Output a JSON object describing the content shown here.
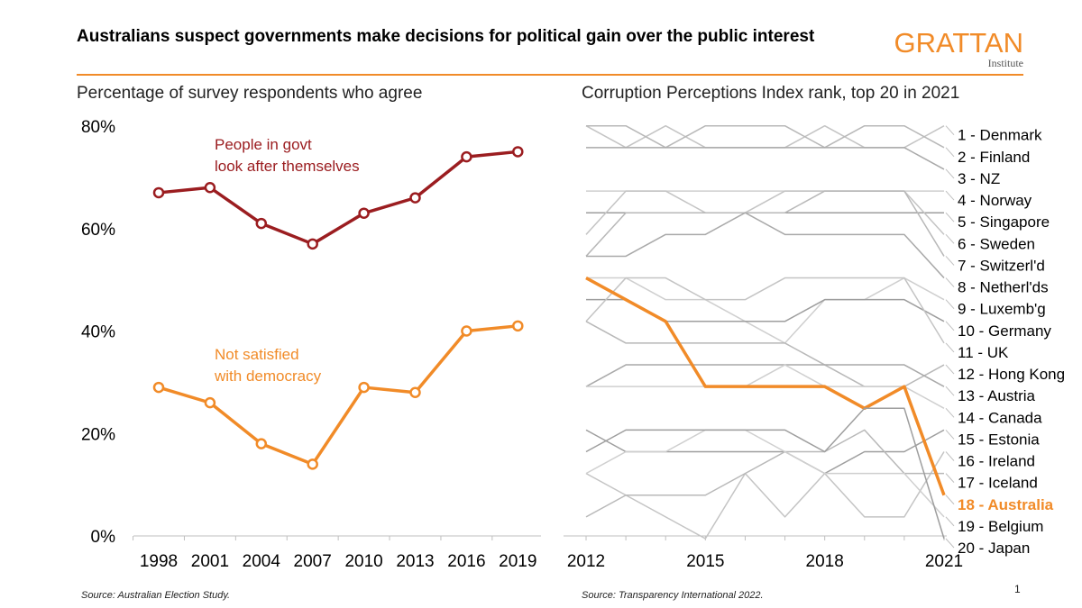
{
  "header": {
    "title": "Australians suspect governments make decisions for political gain over the public interest",
    "logo_word": "GRATTAN",
    "logo_sub": "Institute"
  },
  "colors": {
    "dark_red": "#9b1d20",
    "orange": "#f18b28",
    "grey": "#b3b3b3",
    "dark_grey": "#8c8c8c"
  },
  "page_number": "1",
  "chart_data": [
    {
      "type": "line",
      "title": "Percentage of survey respondents who agree",
      "source": "Source: Australian Election Study.",
      "categories": [
        "1998",
        "2001",
        "2004",
        "2007",
        "2010",
        "2013",
        "2016",
        "2019"
      ],
      "ylim": [
        0,
        80
      ],
      "yticks": [
        "0%",
        "20%",
        "40%",
        "60%",
        "80%"
      ],
      "grid": false,
      "series": [
        {
          "name": "People in govt look after themselves",
          "label_lines": [
            "People in govt",
            "look after themselves"
          ],
          "color": "#9b1d20",
          "values": [
            67,
            68,
            61,
            57,
            63,
            66,
            74,
            75
          ]
        },
        {
          "name": "Not satisfied with democracy",
          "label_lines": [
            "Not satisfied",
            "with democracy"
          ],
          "color": "#f18b28",
          "values": [
            29,
            26,
            18,
            14,
            29,
            28,
            40,
            41
          ]
        }
      ]
    },
    {
      "type": "line",
      "title": "Corruption Perceptions Index rank, top 20 in 2021",
      "source": "Source: Transparency International 2022.",
      "x": [
        2012,
        2013,
        2014,
        2015,
        2016,
        2017,
        2018,
        2019,
        2020,
        2021
      ],
      "xticks": [
        "2012",
        "2015",
        "2018",
        "2021"
      ],
      "y_reversed": true,
      "rank_range": [
        1,
        21
      ],
      "highlight": "18 - Australia",
      "series": [
        {
          "name": "1 - Denmark",
          "values": [
            1,
            2,
            1,
            2,
            2,
            2,
            1,
            2,
            2,
            1
          ]
        },
        {
          "name": "2 - Finland",
          "values": [
            1,
            1,
            2,
            1,
            1,
            1,
            2,
            1,
            1,
            2
          ]
        },
        {
          "name": "3 - NZ",
          "values": [
            2,
            2,
            2,
            2,
            2,
            2,
            2,
            2,
            2,
            3
          ]
        },
        {
          "name": "4 - Norway",
          "values": [
            4,
            4,
            4,
            4,
            4,
            4,
            4,
            4,
            4,
            4
          ]
        },
        {
          "name": "5 - Singapore",
          "values": [
            5,
            5,
            5,
            5,
            5,
            5,
            5,
            5,
            5,
            5
          ]
        },
        {
          "name": "6 - Sweden",
          "values": [
            6,
            4,
            4,
            5,
            5,
            4,
            4,
            4,
            4,
            6
          ]
        },
        {
          "name": "7 - Switzerl'd",
          "values": [
            7,
            5,
            5,
            5,
            5,
            5,
            4,
            4,
            4,
            7
          ]
        },
        {
          "name": "8 - Netherl'ds",
          "values": [
            7,
            7,
            6,
            6,
            5,
            6,
            6,
            6,
            6,
            8
          ]
        },
        {
          "name": "9 - Luxemb'g",
          "values": [
            8,
            8,
            9,
            9,
            10,
            11,
            9,
            9,
            8,
            9
          ]
        },
        {
          "name": "10 - Germany",
          "values": [
            9,
            9,
            10,
            10,
            10,
            10,
            9,
            9,
            9,
            10
          ]
        },
        {
          "name": "11 - UK",
          "values": [
            10,
            8,
            8,
            9,
            9,
            8,
            8,
            8,
            8,
            11
          ]
        },
        {
          "name": "12 - Hong Kong",
          "values": [
            10,
            11,
            11,
            11,
            11,
            11,
            12,
            13,
            13,
            12
          ]
        },
        {
          "name": "13 - Austria",
          "values": [
            13,
            12,
            12,
            12,
            12,
            12,
            12,
            12,
            12,
            13
          ]
        },
        {
          "name": "14 - Canada",
          "values": [
            13,
            13,
            13,
            13,
            13,
            12,
            13,
            13,
            13,
            14
          ]
        },
        {
          "name": "15 - Estonia",
          "values": [
            15,
            16,
            16,
            16,
            16,
            16,
            17,
            16,
            16,
            15
          ]
        },
        {
          "name": "16 - Ireland",
          "values": [
            17,
            18,
            19,
            20,
            17,
            19,
            17,
            19,
            19,
            16
          ]
        },
        {
          "name": "17 - Iceland",
          "values": [
            19,
            18,
            18,
            18,
            17,
            16,
            16,
            15,
            17,
            17
          ]
        },
        {
          "name": "18 - Australia",
          "values": [
            8,
            9,
            10,
            13,
            13,
            13,
            13,
            14,
            13,
            18
          ]
        },
        {
          "name": "19 - Belgium",
          "values": [
            17,
            16,
            16,
            15,
            15,
            16,
            17,
            17,
            17,
            19
          ]
        },
        {
          "name": "20 - Japan",
          "values": [
            16,
            15,
            15,
            15,
            15,
            15,
            16,
            14,
            14,
            20
          ]
        }
      ]
    }
  ]
}
